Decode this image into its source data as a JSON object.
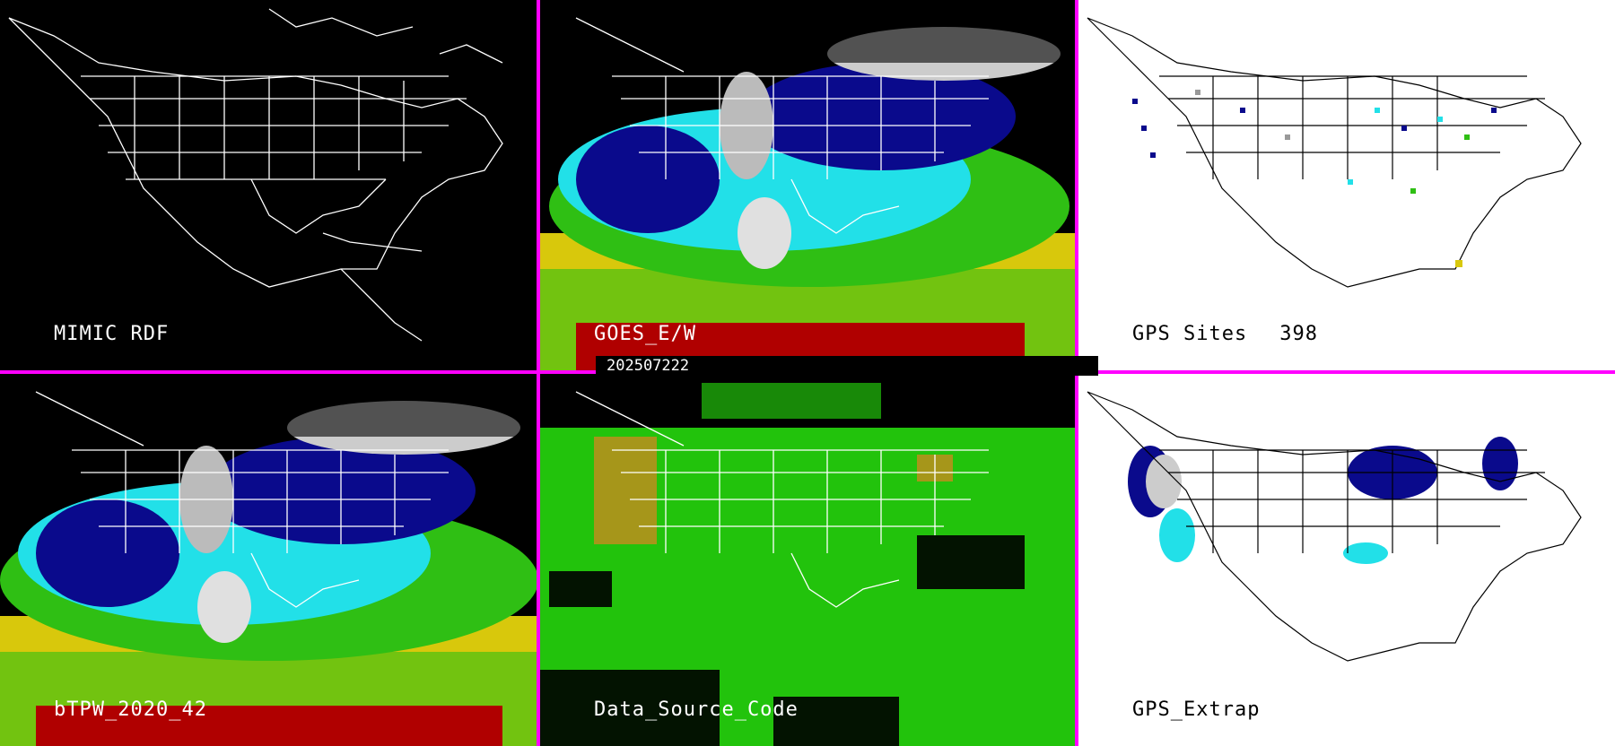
{
  "timestamp": "202507222",
  "panels": [
    {
      "id": "mimic-rdf",
      "label": "MIMIC RDF",
      "background": "#000000",
      "style": "outline"
    },
    {
      "id": "goes-ew",
      "label": "GOES_E/W",
      "background": "#000000",
      "style": "tpw"
    },
    {
      "id": "gps-sites",
      "label": "GPS Sites",
      "count": "398",
      "background": "#ffffff",
      "style": "sites"
    },
    {
      "id": "btpw",
      "label": "bTPW_2020_42",
      "background": "#000000",
      "style": "tpw"
    },
    {
      "id": "data-source-code",
      "label": "Data_Source_Code",
      "background": "#000000",
      "style": "source"
    },
    {
      "id": "gps-extrap",
      "label": "GPS_Extrap",
      "background": "#ffffff",
      "style": "extrap"
    }
  ],
  "colors": {
    "divider": "#ff00ff",
    "tpw_low": "#0a0a8c",
    "tpw_mid": "#22e0e8",
    "tpw_high": "#2fbf14",
    "tpw_max": "#d8c80c",
    "tpw_extreme": "#b00000",
    "source_green": "#22c30c",
    "source_olive": "#a6961a"
  }
}
